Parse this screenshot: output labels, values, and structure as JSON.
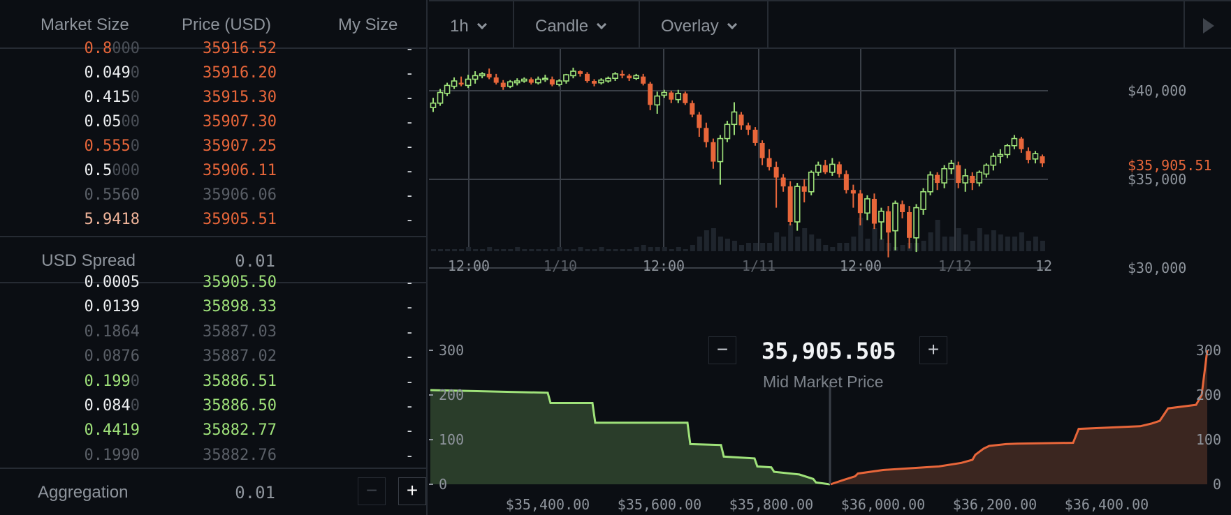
{
  "order_book": {
    "headers": {
      "market_size": "Market Size",
      "price": "Price (USD)",
      "my_size": "My Size"
    },
    "asks": [
      {
        "size_main": "0.8",
        "size_pad": "000",
        "price": "35916.52",
        "mine": "-",
        "size_color": "#e8663a",
        "price_color": "#e8663a",
        "pad_color": "#4a4f57"
      },
      {
        "size_main": "0.049",
        "size_pad": "0",
        "price": "35916.20",
        "mine": "-",
        "size_color": "#eef0f2",
        "price_color": "#e8663a",
        "pad_color": "#4a4f57"
      },
      {
        "size_main": "0.415",
        "size_pad": "0",
        "price": "35915.30",
        "mine": "-",
        "size_color": "#eef0f2",
        "price_color": "#e8663a",
        "pad_color": "#4a4f57"
      },
      {
        "size_main": "0.05",
        "size_pad": "00",
        "price": "35907.30",
        "mine": "-",
        "size_color": "#eef0f2",
        "price_color": "#e8663a",
        "pad_color": "#4a4f57"
      },
      {
        "size_main": "0.555",
        "size_pad": "0",
        "price": "35907.25",
        "mine": "-",
        "size_color": "#e8663a",
        "price_color": "#e8663a",
        "pad_color": "#4a4f57"
      },
      {
        "size_main": "0.5",
        "size_pad": "000",
        "price": "35906.11",
        "mine": "-",
        "size_color": "#eef0f2",
        "price_color": "#e8663a",
        "pad_color": "#4a4f57"
      },
      {
        "size_main": "0.5560",
        "size_pad": "",
        "price": "35906.06",
        "mine": "-",
        "size_color": "#5a5f67",
        "price_color": "#5a5f67",
        "pad_color": "#4a4f57"
      },
      {
        "size_main": "5.9418",
        "size_pad": "",
        "price": "35905.51",
        "mine": "-",
        "size_color": "#f0b49a",
        "price_color": "#e8663a",
        "pad_color": "#4a4f57"
      }
    ],
    "spread": {
      "label": "USD Spread",
      "value": "0.01"
    },
    "bids": [
      {
        "size_main": "0.0005",
        "size_pad": "",
        "price": "35905.50",
        "mine": "-",
        "size_color": "#eef0f2",
        "price_color": "#9fe27a",
        "pad_color": "#4a4f57"
      },
      {
        "size_main": "0.0139",
        "size_pad": "",
        "price": "35898.33",
        "mine": "-",
        "size_color": "#eef0f2",
        "price_color": "#9fe27a",
        "pad_color": "#4a4f57"
      },
      {
        "size_main": "0.1864",
        "size_pad": "",
        "price": "35887.03",
        "mine": "-",
        "size_color": "#5a5f67",
        "price_color": "#5a5f67",
        "pad_color": "#4a4f57"
      },
      {
        "size_main": "0.0876",
        "size_pad": "",
        "price": "35887.02",
        "mine": "-",
        "size_color": "#5a5f67",
        "price_color": "#5a5f67",
        "pad_color": "#4a4f57"
      },
      {
        "size_main": "0.199",
        "size_pad": "0",
        "price": "35886.51",
        "mine": "-",
        "size_color": "#9fe27a",
        "price_color": "#9fe27a",
        "pad_color": "#4a4f57"
      },
      {
        "size_main": "0.084",
        "size_pad": "0",
        "price": "35886.50",
        "mine": "-",
        "size_color": "#eef0f2",
        "price_color": "#9fe27a",
        "pad_color": "#4a4f57"
      },
      {
        "size_main": "0.4419",
        "size_pad": "",
        "price": "35882.77",
        "mine": "-",
        "size_color": "#9fe27a",
        "price_color": "#9fe27a",
        "pad_color": "#4a4f57"
      },
      {
        "size_main": "0.1990",
        "size_pad": "",
        "price": "35882.76",
        "mine": "-",
        "size_color": "#5a5f67",
        "price_color": "#5a5f67",
        "pad_color": "#4a4f57"
      }
    ],
    "aggregation": {
      "label": "Aggregation",
      "value": "0.01",
      "minus": "−",
      "plus": "+"
    }
  },
  "toolbar": {
    "interval": "1h",
    "chart_type": "Candle",
    "overlay": "Overlay"
  },
  "mid_market": {
    "value": "35,905.505",
    "label": "Mid Market Price",
    "minus": "−",
    "plus": "+"
  },
  "colors": {
    "up": "#9fe27a",
    "down": "#e8663a",
    "grid": "#3a3f47",
    "axis_text": "#8e949c"
  },
  "chart_data": [
    {
      "type": "candlestick",
      "y_ticks": [
        "$40,000",
        "$35,000",
        "$30,000"
      ],
      "y_tick_values": [
        40000,
        35000,
        30000
      ],
      "x_ticks": [
        "12:00",
        "1/10",
        "12:00",
        "1/11",
        "12:00",
        "1/12",
        "12"
      ],
      "last_price_label": "$35,905.51",
      "ohlc": [
        [
          39050,
          39300,
          38800,
          39600
        ],
        [
          39300,
          39900,
          39150,
          40100
        ],
        [
          39850,
          40300,
          39700,
          40450
        ],
        [
          40250,
          40550,
          40100,
          40750
        ],
        [
          40450,
          40350,
          40250,
          40800
        ],
        [
          40300,
          40650,
          40150,
          40900
        ],
        [
          40650,
          40850,
          40400,
          41100
        ],
        [
          40850,
          40950,
          40700,
          41050
        ],
        [
          40950,
          40750,
          40650,
          41250
        ],
        [
          40750,
          40450,
          40350,
          40950
        ],
        [
          40450,
          40200,
          40050,
          40600
        ],
        [
          40250,
          40500,
          40150,
          40600
        ],
        [
          40450,
          40550,
          40300,
          40700
        ],
        [
          40550,
          40650,
          40450,
          40750
        ],
        [
          40650,
          40450,
          40350,
          40750
        ],
        [
          40450,
          40650,
          40350,
          40800
        ],
        [
          40650,
          40700,
          40500,
          40900
        ],
        [
          40650,
          40350,
          40250,
          40800
        ],
        [
          40350,
          40550,
          40250,
          40650
        ],
        [
          40550,
          40900,
          40400,
          40950
        ],
        [
          40850,
          41100,
          40700,
          41300
        ],
        [
          41100,
          40950,
          40800,
          41150
        ],
        [
          40950,
          40550,
          40450,
          41050
        ],
        [
          40550,
          40400,
          40250,
          40650
        ],
        [
          40450,
          40600,
          40350,
          40700
        ],
        [
          40550,
          40700,
          40450,
          40800
        ],
        [
          40700,
          40950,
          40550,
          41050
        ],
        [
          40950,
          40850,
          40700,
          41150
        ],
        [
          40850,
          40700,
          40550,
          40950
        ],
        [
          40700,
          40850,
          40600,
          40950
        ],
        [
          40800,
          40400,
          40300,
          40950
        ],
        [
          40400,
          39200,
          38900,
          40500
        ],
        [
          39200,
          39700,
          38700,
          39950
        ],
        [
          39750,
          39900,
          39600,
          40050
        ],
        [
          39900,
          39500,
          39300,
          40000
        ],
        [
          39500,
          39850,
          39300,
          40050
        ],
        [
          39850,
          39300,
          39200,
          39950
        ],
        [
          39300,
          38650,
          38500,
          39450
        ],
        [
          38650,
          37900,
          37400,
          38800
        ],
        [
          37900,
          37100,
          36800,
          38200
        ],
        [
          37100,
          36000,
          35600,
          37300
        ],
        [
          36000,
          37300,
          34700,
          37500
        ],
        [
          37300,
          38100,
          37100,
          38300
        ],
        [
          38100,
          38800,
          37500,
          39350
        ],
        [
          38650,
          38050,
          37800,
          38800
        ],
        [
          38050,
          37800,
          37500,
          38200
        ],
        [
          37800,
          37050,
          36900,
          37950
        ],
        [
          37050,
          36200,
          35800,
          37200
        ],
        [
          36200,
          35700,
          35500,
          36700
        ],
        [
          35700,
          35100,
          33400,
          36000
        ],
        [
          35100,
          34600,
          34300,
          35300
        ],
        [
          34600,
          32600,
          32400,
          34900
        ],
        [
          32600,
          34600,
          32100,
          34800
        ],
        [
          34600,
          34300,
          33700,
          35000
        ],
        [
          34300,
          35400,
          34100,
          35500
        ],
        [
          35400,
          35800,
          35200,
          36000
        ],
        [
          35800,
          35400,
          35300,
          36100
        ],
        [
          35400,
          35850,
          35200,
          36200
        ],
        [
          35850,
          35300,
          35100,
          36000
        ],
        [
          35300,
          34400,
          34200,
          35500
        ],
        [
          34400,
          34200,
          33400,
          34700
        ],
        [
          34200,
          33100,
          32400,
          34400
        ],
        [
          33100,
          33900,
          32700,
          34100
        ],
        [
          33900,
          32500,
          32200,
          34200
        ],
        [
          32600,
          33200,
          31600,
          33400
        ],
        [
          33200,
          32000,
          30600,
          33500
        ],
        [
          32100,
          33650,
          31000,
          33800
        ],
        [
          33600,
          33150,
          32800,
          33800
        ],
        [
          33150,
          31700,
          31100,
          33500
        ],
        [
          31700,
          33400,
          30900,
          33600
        ],
        [
          33300,
          34300,
          33000,
          34500
        ],
        [
          34300,
          35250,
          34100,
          35450
        ],
        [
          35250,
          34800,
          34400,
          35400
        ],
        [
          34800,
          35600,
          34500,
          35800
        ],
        [
          35600,
          35900,
          35300,
          36100
        ],
        [
          35800,
          34800,
          34500,
          36000
        ],
        [
          34800,
          35200,
          34300,
          35600
        ],
        [
          35200,
          34800,
          34400,
          35400
        ],
        [
          34800,
          35400,
          34600,
          35500
        ],
        [
          35300,
          35800,
          35100,
          35900
        ],
        [
          35800,
          36300,
          35500,
          36500
        ],
        [
          36300,
          36400,
          35900,
          36700
        ],
        [
          36400,
          36900,
          36200,
          37000
        ],
        [
          36900,
          37300,
          36700,
          37500
        ],
        [
          37300,
          36700,
          36500,
          37400
        ],
        [
          36600,
          36100,
          35900,
          36800
        ],
        [
          36150,
          36450,
          35900,
          36600
        ],
        [
          36300,
          35900,
          35700,
          36400
        ]
      ],
      "volume": [
        1,
        1,
        1,
        1,
        1,
        2,
        1,
        1,
        2,
        1,
        1,
        1,
        2,
        1,
        1,
        1,
        1,
        1,
        2,
        1,
        1,
        2,
        1,
        1,
        2,
        1,
        1,
        1,
        1,
        2,
        3,
        2,
        2,
        2,
        1,
        2,
        1,
        3,
        7,
        10,
        11,
        7,
        6,
        5,
        3,
        4,
        4,
        4,
        4,
        9,
        7,
        13,
        7,
        11,
        8,
        6,
        3,
        2,
        4,
        4,
        7,
        16,
        6,
        11,
        6,
        4,
        2,
        3,
        4,
        4,
        5,
        9,
        15,
        7,
        7,
        11,
        8,
        5,
        11,
        8,
        10,
        8,
        7,
        7,
        9,
        5,
        7,
        5
      ]
    },
    {
      "type": "area",
      "y_ticks": [
        "0",
        "100",
        "200",
        "300"
      ],
      "y_tick_values": [
        0,
        100,
        200,
        300
      ],
      "x_ticks": [
        "$35,400.00",
        "$35,600.00",
        "$35,800.00",
        "$36,000.00",
        "$36,200.00",
        "$36,400.00"
      ],
      "x_tick_values": [
        35400,
        35600,
        35800,
        36000,
        36200,
        36400
      ],
      "series": [
        {
          "name": "",
          "color": "#9fe27a",
          "fill": "#2a3d2a",
          "x": [
            35190,
            35400,
            35405,
            35480,
            35485,
            35650,
            35655,
            35710,
            35715,
            35770,
            35775,
            35800,
            35805,
            35850,
            35875,
            35880,
            35905
          ],
          "y": [
            211,
            205,
            182,
            182,
            138,
            138,
            90,
            88,
            62,
            58,
            40,
            38,
            28,
            22,
            12,
            4,
            0
          ]
        },
        {
          "name": "",
          "color": "#e8663a",
          "fill": "#3b2620",
          "x": [
            35906,
            35930,
            35950,
            35955,
            36000,
            36100,
            36140,
            36160,
            36165,
            36180,
            36190,
            36220,
            36240,
            36340,
            36350,
            36460,
            36480,
            36495,
            36510,
            36560,
            36570,
            36580
          ],
          "y": [
            0,
            10,
            18,
            24,
            32,
            40,
            48,
            55,
            66,
            80,
            86,
            90,
            91,
            93,
            124,
            130,
            136,
            142,
            170,
            178,
            200,
            300
          ]
        }
      ]
    }
  ]
}
